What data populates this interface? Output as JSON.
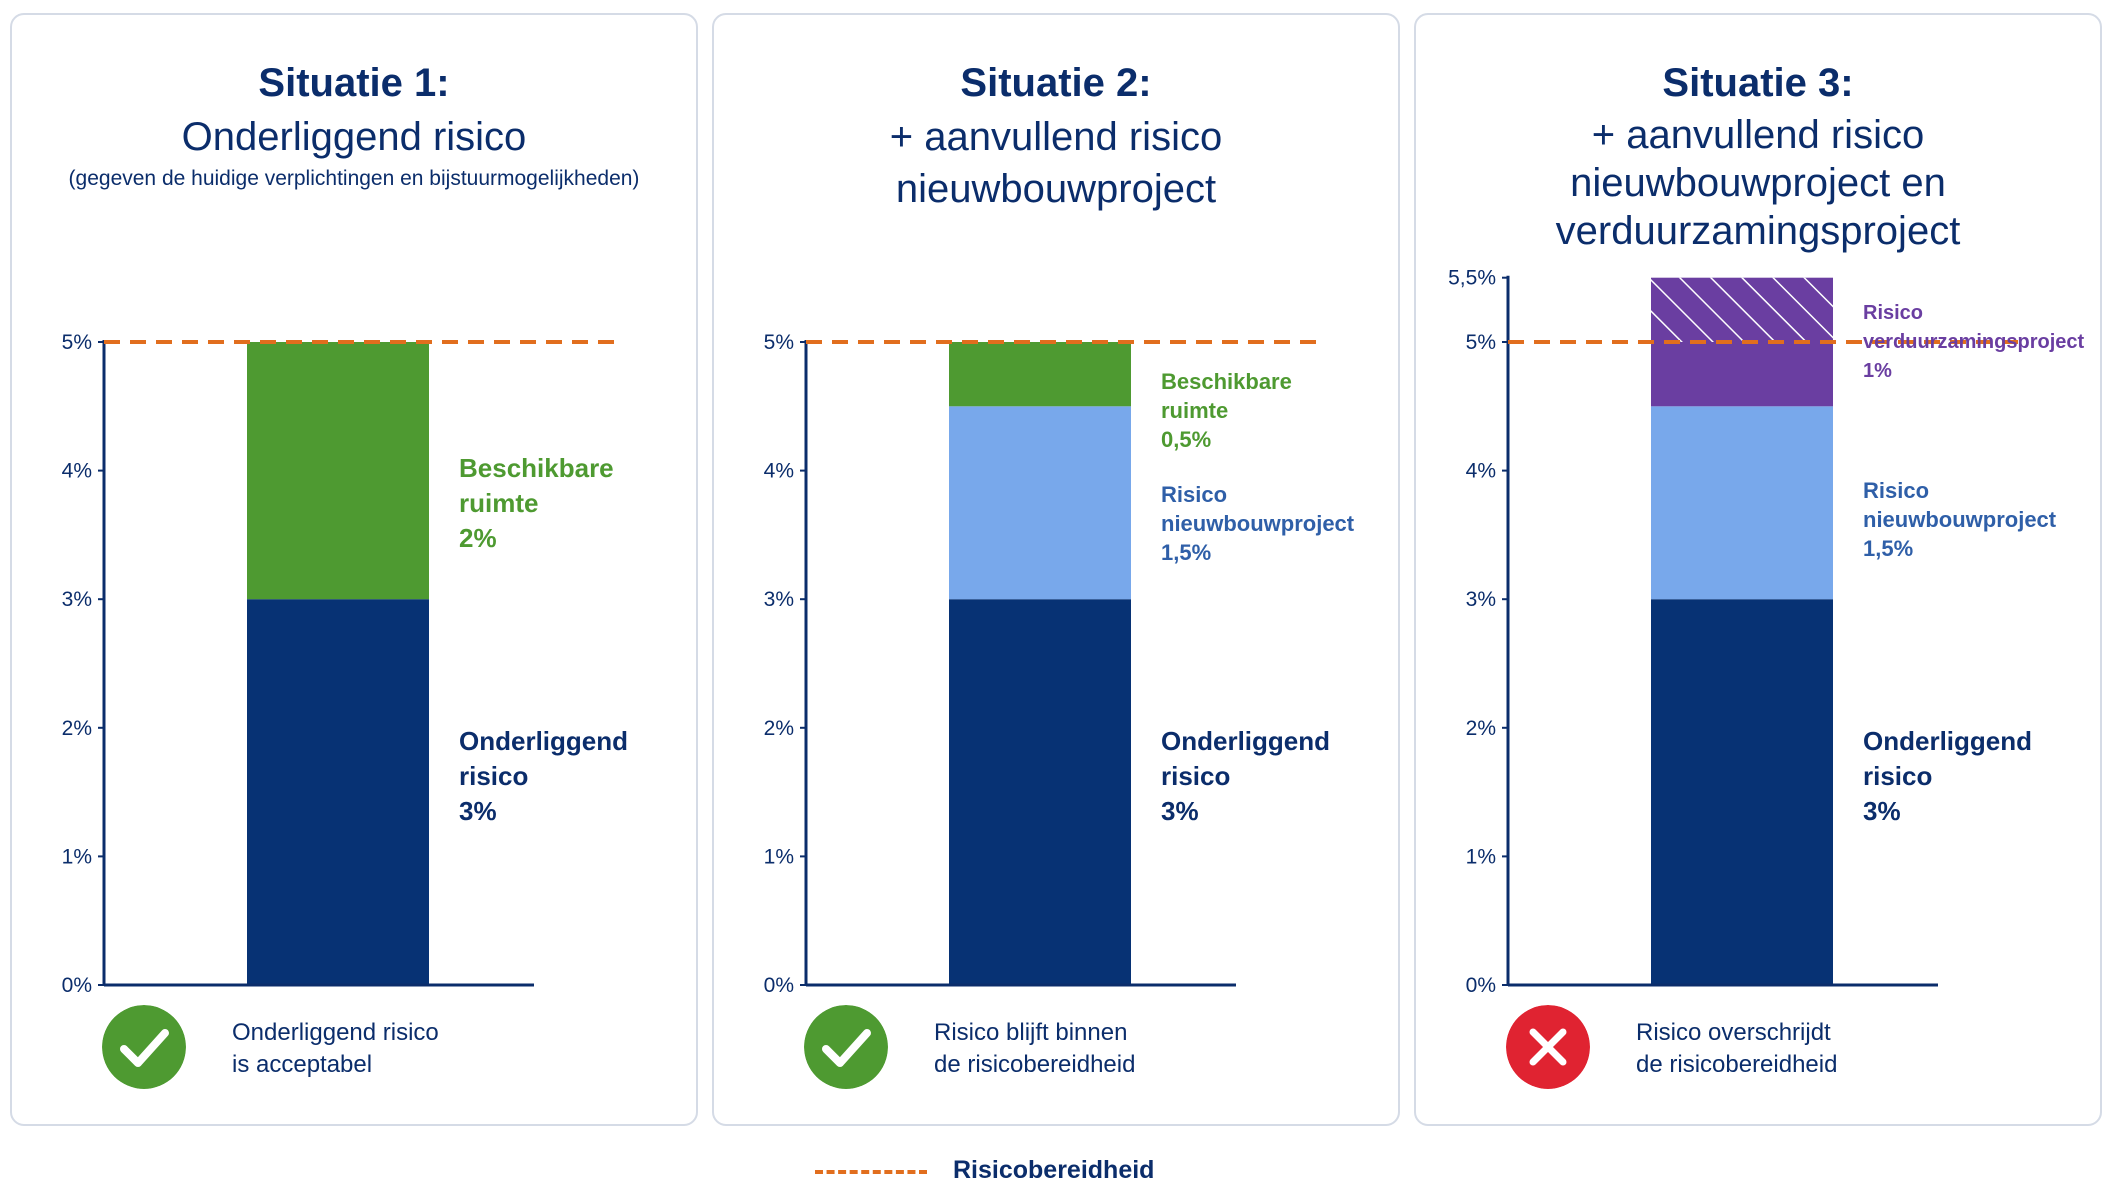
{
  "colors": {
    "underlying": "#073274",
    "available": "#4e9a31",
    "newbuild": "#78a8eb",
    "sustainability": "#6a3ea1",
    "threshold": "#e16e1e",
    "ok": "#4e9a31",
    "fail": "#e02331",
    "text": "#0b2d6b"
  },
  "legend": {
    "label": "Risicobereidheid"
  },
  "panels": [
    {
      "title_bold": "Situatie 1:",
      "title_lines": [
        "Onderliggend risico"
      ],
      "subtitle": "(gegeven de huidige verplichtingen en bijstuurmogelijkheden)",
      "status": {
        "icon": "check-icon",
        "lines": [
          "Onderliggend risico",
          "is acceptabel"
        ]
      }
    },
    {
      "title_bold": "Situatie 2:",
      "title_lines": [
        "+ aanvullend risico",
        "nieuwbouwproject"
      ],
      "subtitle": "",
      "status": {
        "icon": "check-icon",
        "lines": [
          "Risico blijft binnen",
          "de risicobereidheid"
        ]
      }
    },
    {
      "title_bold": "Situatie 3:",
      "title_lines": [
        "+ aanvullend risico",
        "nieuwbouwproject en",
        "verduurzamingsproject"
      ],
      "subtitle": "",
      "status": {
        "icon": "cross-icon",
        "lines": [
          "Risico overschrijdt",
          "de risicobereidheid"
        ]
      }
    }
  ],
  "chart_data": [
    {
      "type": "bar",
      "stacked": true,
      "threshold": 5,
      "ylim": [
        0,
        5
      ],
      "yticks": [
        "0%",
        "1%",
        "2%",
        "3%",
        "4%",
        "5%"
      ],
      "segments": [
        {
          "name": "Onderliggend risico",
          "value": 3,
          "color_key": "underlying",
          "label_lines": [
            "Onderliggend",
            "risico",
            "3%"
          ]
        },
        {
          "name": "Beschikbare ruimte",
          "value": 2,
          "color_key": "available",
          "label_lines": [
            "Beschikbare",
            "ruimte",
            "2%"
          ]
        }
      ]
    },
    {
      "type": "bar",
      "stacked": true,
      "threshold": 5,
      "ylim": [
        0,
        5
      ],
      "yticks": [
        "0%",
        "1%",
        "2%",
        "3%",
        "4%",
        "5%"
      ],
      "segments": [
        {
          "name": "Onderliggend risico",
          "value": 3,
          "color_key": "underlying",
          "label_lines": [
            "Onderliggend",
            "risico",
            "3%"
          ]
        },
        {
          "name": "Risico nieuwbouwproject",
          "value": 1.5,
          "color_key": "newbuild",
          "label_lines": [
            "Risico",
            "nieuwbouwproject",
            "1,5%"
          ]
        },
        {
          "name": "Beschikbare ruimte",
          "value": 0.5,
          "color_key": "available",
          "label_lines": [
            "Beschikbare",
            "ruimte",
            "0,5%"
          ]
        }
      ]
    },
    {
      "type": "bar",
      "stacked": true,
      "threshold": 5,
      "ylim": [
        0,
        5.5
      ],
      "yticks": [
        "0%",
        "1%",
        "2%",
        "3%",
        "4%",
        "5%",
        "5,5%"
      ],
      "segments": [
        {
          "name": "Onderliggend risico",
          "value": 3,
          "color_key": "underlying",
          "label_lines": [
            "Onderliggend",
            "risico",
            "3%"
          ]
        },
        {
          "name": "Risico nieuwbouwproject",
          "value": 1.5,
          "color_key": "newbuild",
          "label_lines": [
            "Risico",
            "nieuwbouwproject",
            "1,5%"
          ]
        },
        {
          "name": "Risico verduurzamingsproject",
          "value": 1,
          "color_key": "sustainability",
          "hatched_above_threshold": true,
          "label_lines": [
            "Risico",
            "verduurzamingsproject",
            "1%"
          ]
        }
      ]
    }
  ]
}
